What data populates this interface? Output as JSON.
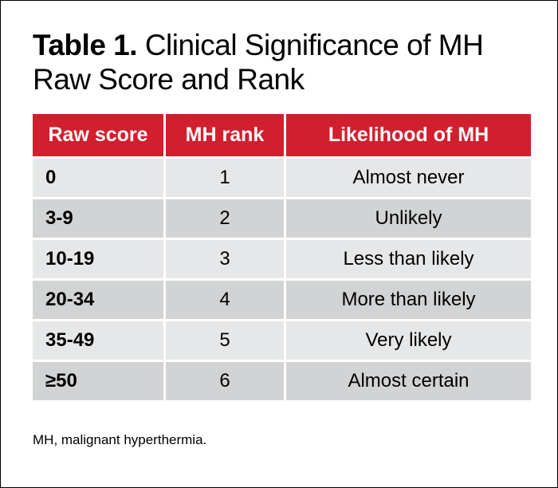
{
  "title": {
    "label": "Table 1.",
    "text": "Clinical Significance of MH Raw Score and Rank"
  },
  "table": {
    "headers": [
      "Raw score",
      "MH rank",
      "Likelihood of MH"
    ],
    "rows": [
      {
        "raw_score": "0",
        "mh_rank": "1",
        "likelihood": "Almost never"
      },
      {
        "raw_score": "3-9",
        "mh_rank": "2",
        "likelihood": "Unlikely"
      },
      {
        "raw_score": "10-19",
        "mh_rank": "3",
        "likelihood": "Less than likely"
      },
      {
        "raw_score": "20-34",
        "mh_rank": "4",
        "likelihood": "More than likely"
      },
      {
        "raw_score": "35-49",
        "mh_rank": "5",
        "likelihood": "Very likely"
      },
      {
        "raw_score": "≥50",
        "mh_rank": "6",
        "likelihood": "Almost certain"
      }
    ]
  },
  "footnote": "MH, malignant hyperthermia.",
  "colors": {
    "header_background": "#d11f2e",
    "header_text": "#ffffff",
    "row_light": "#e6e7e8",
    "row_dark": "#d1d3d4"
  }
}
